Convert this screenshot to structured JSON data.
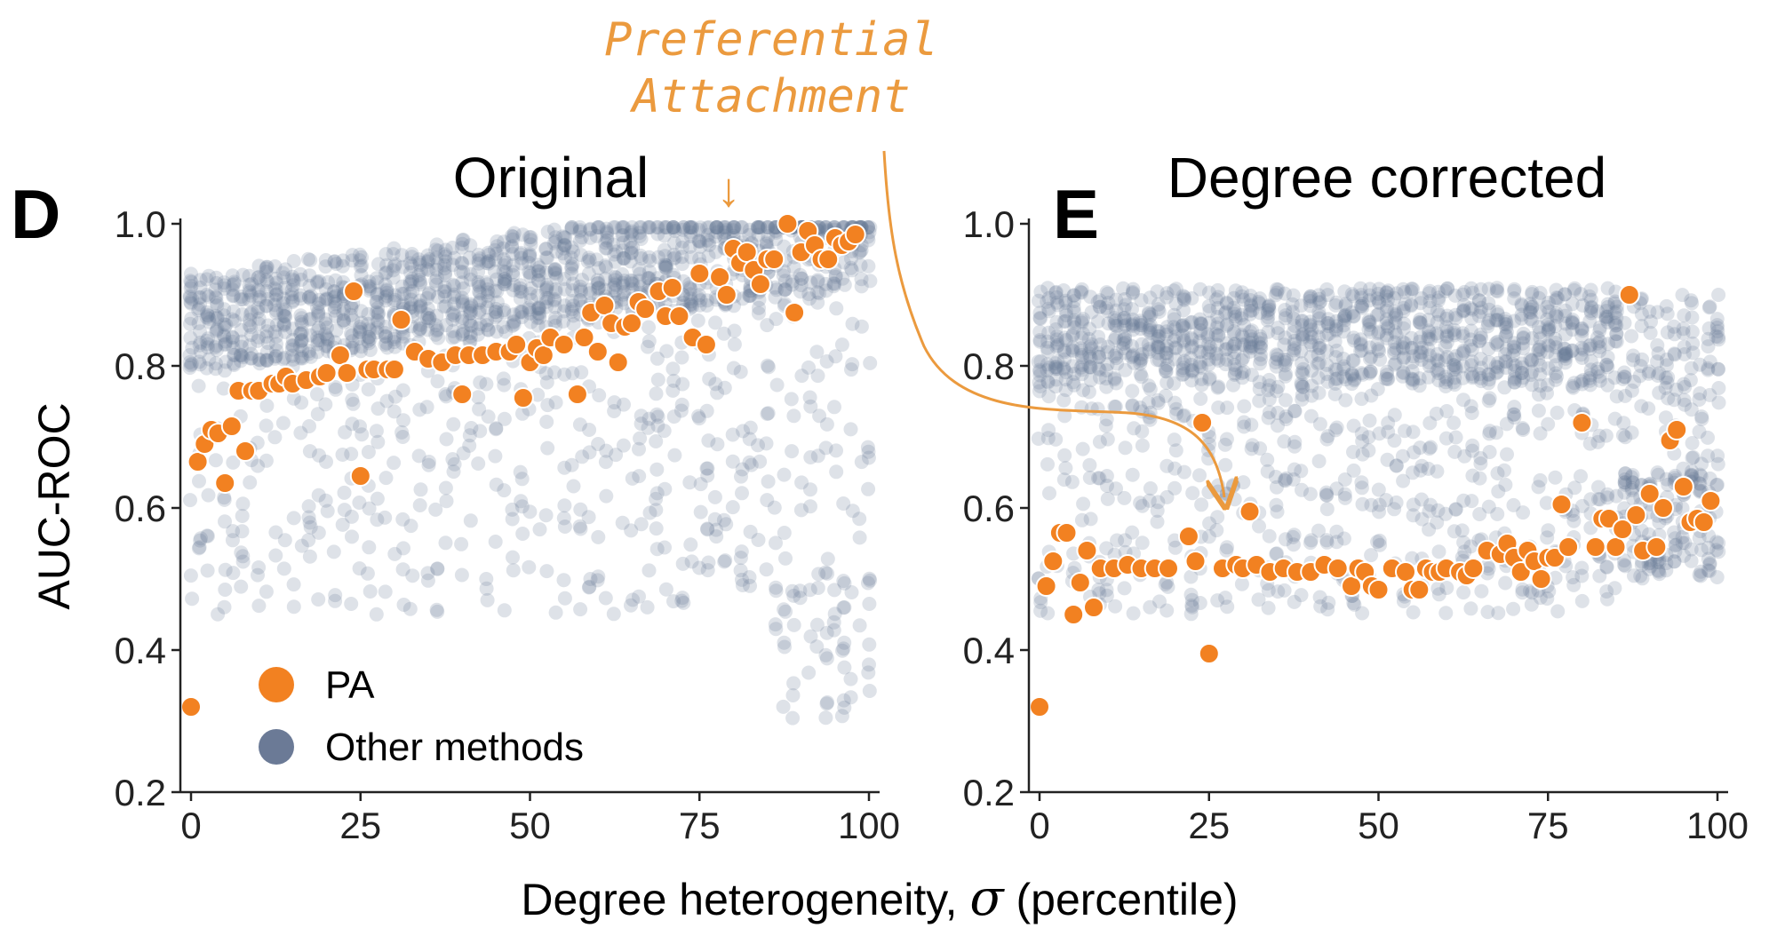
{
  "figure": {
    "ylabel": "AUC-ROC",
    "xlabel_prefix": "Degree heterogeneity, ",
    "xlabel_symbol": "σ",
    "xlabel_suffix": " (percentile)",
    "annotation_line1": "Preferential",
    "annotation_line2": "Attachment",
    "annotation_arrow": "↓"
  },
  "colors": {
    "pa": "#f28121",
    "other": "#6b7a96",
    "annotation": "#eb9a3e",
    "axis": "#222222"
  },
  "legend": {
    "placement": "lower-left",
    "items": [
      {
        "label": "PA",
        "color": "#f28121"
      },
      {
        "label": "Other methods",
        "color": "#6b7a96"
      }
    ]
  },
  "chart_data": [
    {
      "type": "scatter",
      "panel_letter": "D",
      "title": "Original",
      "xlim": [
        0,
        100
      ],
      "ylim": [
        0.2,
        1.0
      ],
      "xticks": [
        "0",
        "25",
        "50",
        "75",
        "100"
      ],
      "yticks": [
        "0.2",
        "0.4",
        "0.6",
        "0.8",
        "1.0"
      ],
      "series": [
        {
          "name": "PA",
          "x": [
            0,
            1,
            2,
            3,
            4,
            5,
            6,
            7,
            8,
            9,
            10,
            12,
            13,
            14,
            15,
            17,
            19,
            20,
            22,
            23,
            24,
            25,
            26,
            27,
            29,
            30,
            31,
            33,
            35,
            37,
            39,
            40,
            41,
            43,
            45,
            47,
            48,
            49,
            50,
            51,
            52,
            53,
            55,
            57,
            58,
            59,
            60,
            61,
            62,
            63,
            64,
            65,
            66,
            67,
            69,
            70,
            71,
            72,
            74,
            75,
            76,
            78,
            79,
            80,
            81,
            82,
            83,
            84,
            85,
            86,
            88,
            89,
            90,
            91,
            92,
            93,
            94,
            95,
            96,
            97,
            98
          ],
          "y": [
            0.32,
            0.665,
            0.69,
            0.71,
            0.705,
            0.635,
            0.715,
            0.765,
            0.68,
            0.765,
            0.765,
            0.775,
            0.775,
            0.785,
            0.775,
            0.78,
            0.785,
            0.79,
            0.815,
            0.79,
            0.905,
            0.645,
            0.795,
            0.795,
            0.795,
            0.795,
            0.865,
            0.82,
            0.81,
            0.805,
            0.815,
            0.76,
            0.815,
            0.815,
            0.82,
            0.82,
            0.83,
            0.755,
            0.805,
            0.825,
            0.815,
            0.84,
            0.83,
            0.76,
            0.84,
            0.875,
            0.82,
            0.885,
            0.86,
            0.805,
            0.855,
            0.86,
            0.89,
            0.88,
            0.905,
            0.87,
            0.91,
            0.87,
            0.84,
            0.93,
            0.83,
            0.925,
            0.9,
            0.965,
            0.945,
            0.96,
            0.935,
            0.915,
            0.95,
            0.95,
            1.0,
            0.875,
            0.96,
            0.99,
            0.97,
            0.95,
            0.95,
            0.98,
            0.97,
            0.975,
            0.985
          ]
        },
        {
          "name": "Other methods",
          "note": "dense scatter of many methods per percentile, mostly 0.45–1.0"
        }
      ]
    },
    {
      "type": "scatter",
      "panel_letter": "E",
      "title": "Degree corrected",
      "xlim": [
        0,
        100
      ],
      "ylim": [
        0.2,
        1.0
      ],
      "xticks": [
        "0",
        "25",
        "50",
        "75",
        "100"
      ],
      "yticks": [
        "0.2",
        "0.4",
        "0.6",
        "0.8",
        "1.0"
      ],
      "series": [
        {
          "name": "PA",
          "x": [
            0,
            1,
            2,
            3,
            4,
            5,
            6,
            7,
            8,
            9,
            11,
            13,
            15,
            17,
            19,
            22,
            23,
            24,
            25,
            27,
            29,
            30,
            31,
            32,
            34,
            36,
            38,
            40,
            42,
            44,
            46,
            47,
            48,
            49,
            50,
            52,
            54,
            55,
            56,
            57,
            58,
            59,
            60,
            62,
            63,
            64,
            66,
            68,
            69,
            70,
            71,
            72,
            73,
            74,
            75,
            76,
            77,
            78,
            80,
            82,
            83,
            84,
            85,
            86,
            87,
            88,
            89,
            90,
            91,
            92,
            93,
            94,
            95,
            96,
            97,
            98,
            99
          ],
          "y": [
            0.32,
            0.49,
            0.525,
            0.565,
            0.565,
            0.45,
            0.495,
            0.54,
            0.46,
            0.515,
            0.515,
            0.52,
            0.515,
            0.515,
            0.515,
            0.56,
            0.525,
            0.72,
            0.395,
            0.515,
            0.52,
            0.515,
            0.595,
            0.52,
            0.51,
            0.515,
            0.51,
            0.51,
            0.52,
            0.515,
            0.49,
            0.515,
            0.51,
            0.49,
            0.485,
            0.515,
            0.51,
            0.485,
            0.485,
            0.515,
            0.51,
            0.51,
            0.515,
            0.51,
            0.505,
            0.515,
            0.54,
            0.535,
            0.55,
            0.53,
            0.51,
            0.54,
            0.525,
            0.5,
            0.53,
            0.53,
            0.605,
            0.545,
            0.72,
            0.545,
            0.585,
            0.585,
            0.545,
            0.57,
            0.9,
            0.59,
            0.54,
            0.62,
            0.545,
            0.6,
            0.695,
            0.71,
            0.63,
            0.58,
            0.585,
            0.58,
            0.61
          ]
        },
        {
          "name": "Other methods",
          "note": "dense scatter of many methods per percentile, mostly 0.45–1.0"
        }
      ]
    }
  ]
}
